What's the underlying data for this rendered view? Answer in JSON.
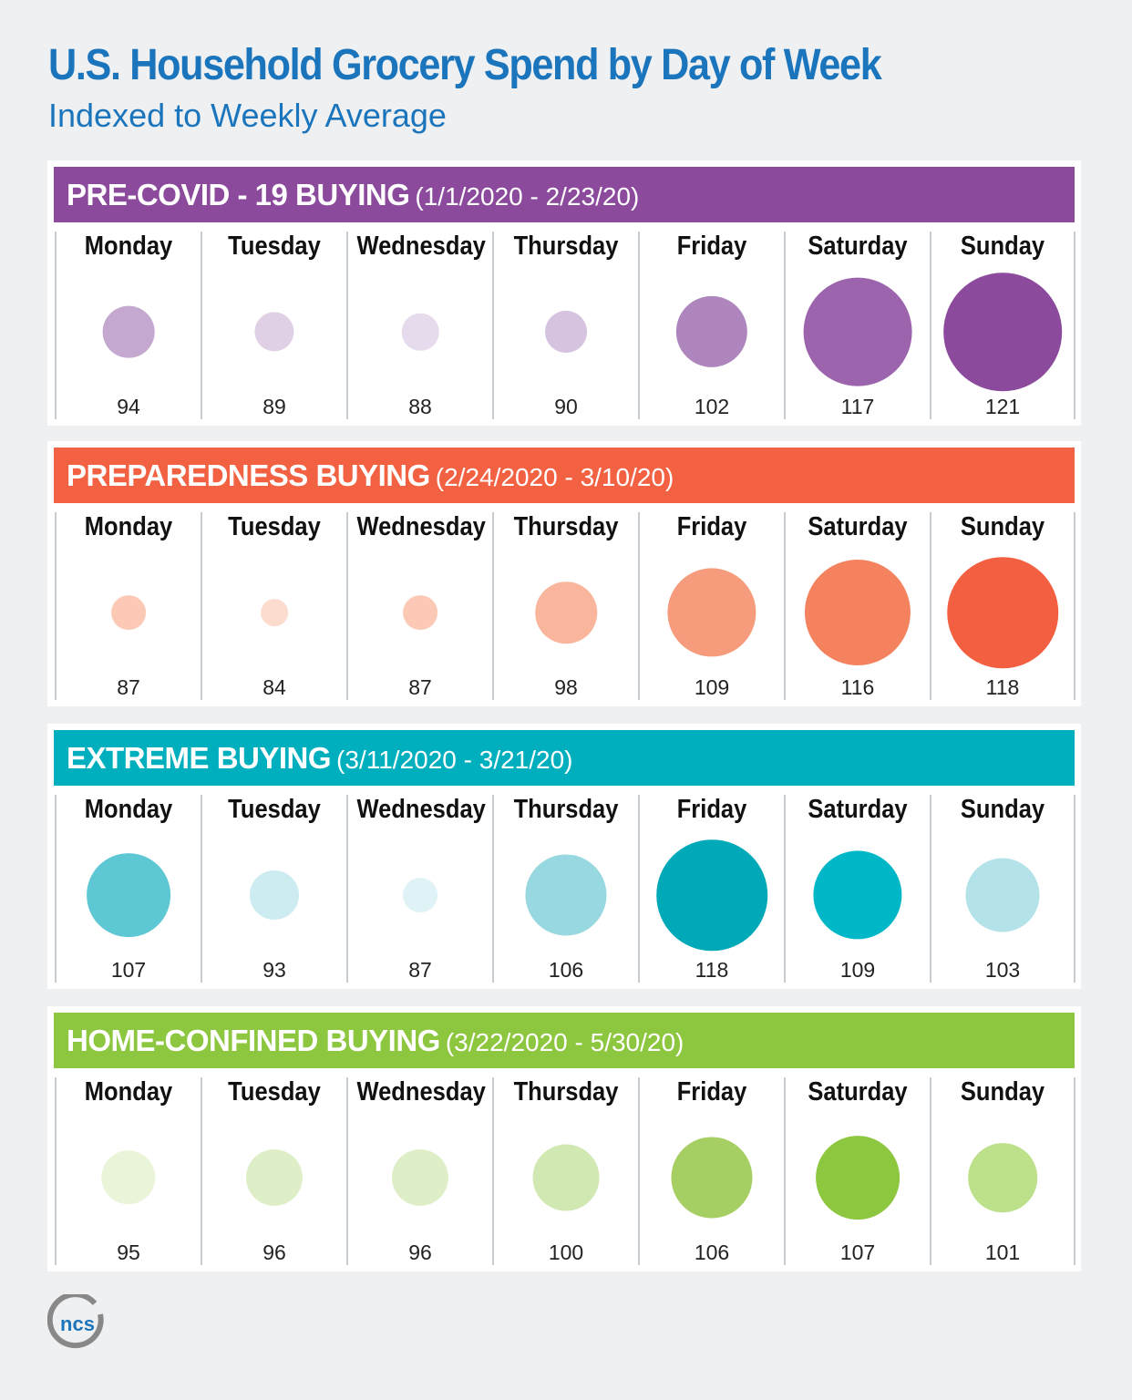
{
  "chart_data": {
    "type": "bubble",
    "title": "U.S. Household Grocery Spend by Day of Week",
    "subtitle": "Indexed to Weekly Average",
    "categories": [
      "Monday",
      "Tuesday",
      "Wednesday",
      "Thursday",
      "Friday",
      "Saturday",
      "Sunday"
    ],
    "series": [
      {
        "name": "PRE-COVID - 19 BUYING",
        "range": "(1/1/2020 - 2/23/20)",
        "color": "#8b4a9b",
        "values": [
          94,
          89,
          88,
          90,
          102,
          117,
          121
        ],
        "bubble_colors": [
          "#c4a8d0",
          "#dfd0e6",
          "#e6dbec",
          "#d6c3df",
          "#ae86bd",
          "#9b64ad",
          "#8b4a9b"
        ]
      },
      {
        "name": "PREPAREDNESS BUYING",
        "range": "(2/24/2020 - 3/10/20)",
        "color": "#f26141",
        "values": [
          87,
          84,
          87,
          98,
          109,
          116,
          118
        ],
        "bubble_colors": [
          "#fbc9b5",
          "#fcdccf",
          "#fbc9b5",
          "#fab69d",
          "#f69c7c",
          "#f4825f",
          "#f25f41"
        ]
      },
      {
        "name": "EXTREME BUYING",
        "range": "(3/11/2020 - 3/21/20)",
        "color": "#00afbd",
        "values": [
          107,
          93,
          87,
          106,
          118,
          109,
          103
        ],
        "bubble_colors": [
          "#5ec7d4",
          "#cdecf1",
          "#dff2f5",
          "#98d8e0",
          "#00a9b8",
          "#00b7c7",
          "#b3e2e9"
        ]
      },
      {
        "name": "HOME-CONFINED BUYING",
        "range": "(3/22/2020 - 5/30/20)",
        "color": "#8dc63f",
        "values": [
          95,
          96,
          96,
          100,
          106,
          107,
          101
        ],
        "bubble_colors": [
          "#e9f4d9",
          "#deefc8",
          "#deefc8",
          "#d2e8b3",
          "#a6cf63",
          "#8dc63f",
          "#bde08b"
        ]
      }
    ]
  },
  "logo": {
    "text": "ncs",
    "icon": "ncs-circle-logo"
  },
  "colors": {
    "title": "#1b75bc",
    "background": "#eff0f2"
  }
}
